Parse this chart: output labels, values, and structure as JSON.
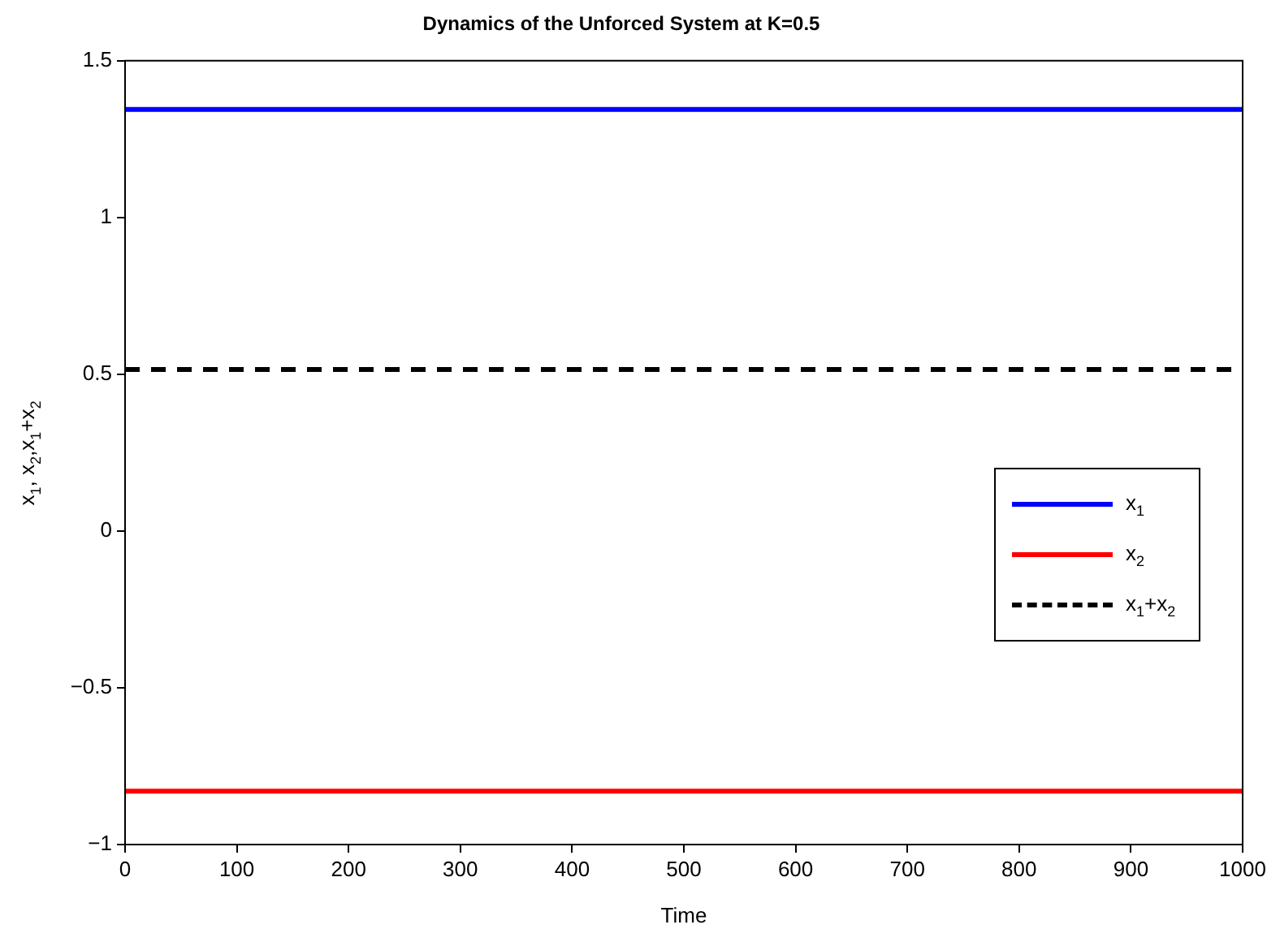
{
  "chart_data": {
    "type": "line",
    "title": "Dynamics of the Unforced System at K=0.5",
    "xlabel": "Time",
    "ylabel": "x$_{1}$, x$_{2}$,x$_{1}$+x$_{2}$",
    "x": [
      0,
      1000
    ],
    "series": [
      {
        "name": "x$_{1}$",
        "color": "#0000ff",
        "values": [
          1.345,
          1.345
        ]
      },
      {
        "name": "x$_{2}$",
        "color": "#ff0000",
        "values": [
          -0.83,
          -0.83
        ]
      },
      {
        "name": "x$_{1}$+x$_{2}$",
        "color": "#000000",
        "values": [
          0.515,
          0.515
        ],
        "line_style": "dashed"
      }
    ],
    "xlim": [
      0,
      1000
    ],
    "xticks": [
      0,
      100,
      200,
      300,
      400,
      500,
      600,
      700,
      800,
      900,
      1000
    ],
    "ylim": [
      -1,
      1.5
    ],
    "yticks": [
      {
        "value": -1,
        "label": "−1"
      },
      {
        "value": -0.5,
        "label": "−0.5"
      },
      0,
      0.5,
      1,
      1.5
    ],
    "grid": false,
    "legend": "right",
    "marker": "none"
  }
}
